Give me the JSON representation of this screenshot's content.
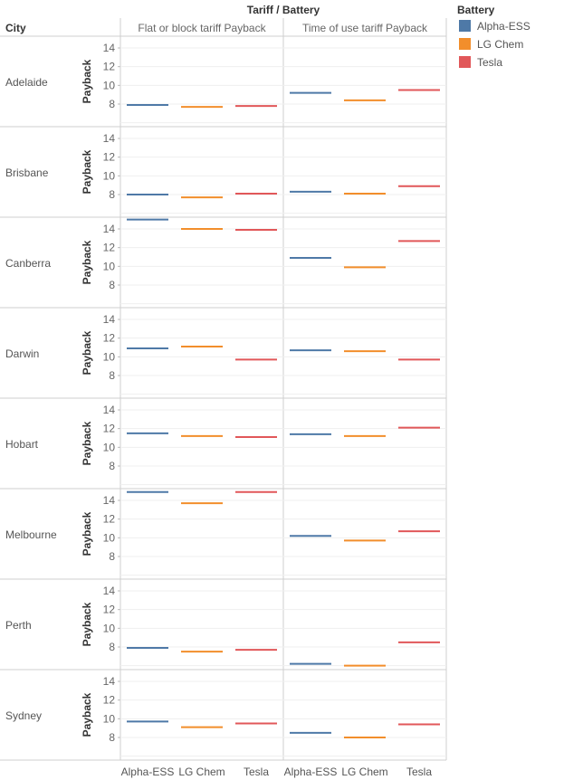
{
  "chart_data": {
    "type": "line",
    "header_title": "Tariff / Battery",
    "row_header": "City",
    "column_groups": [
      "Flat or block tariff Payback",
      "Time of use tariff Payback"
    ],
    "categories": [
      "Alpha-ESS",
      "LG Chem",
      "Tesla"
    ],
    "ylabel": "Payback",
    "yticks": [
      8,
      10,
      12,
      14
    ],
    "ylim": [
      6,
      15.5
    ],
    "legend": {
      "title": "Battery",
      "placement": "top-right",
      "items": [
        {
          "name": "Alpha-ESS",
          "color": "#4e79a7"
        },
        {
          "name": "LG Chem",
          "color": "#f28e2b"
        },
        {
          "name": "Tesla",
          "color": "#e15759"
        }
      ]
    },
    "grid": true,
    "rows": [
      {
        "city": "Adelaide",
        "flat": [
          7.9,
          7.7,
          7.8
        ],
        "tou": [
          9.2,
          8.4,
          9.5
        ]
      },
      {
        "city": "Brisbane",
        "flat": [
          8.0,
          7.7,
          8.1
        ],
        "tou": [
          8.3,
          8.1,
          8.9
        ]
      },
      {
        "city": "Canberra",
        "flat": [
          15.0,
          14.0,
          13.9
        ],
        "tou": [
          10.9,
          9.9,
          12.7
        ]
      },
      {
        "city": "Darwin",
        "flat": [
          10.9,
          11.1,
          9.7
        ],
        "tou": [
          10.7,
          10.6,
          9.7
        ]
      },
      {
        "city": "Hobart",
        "flat": [
          11.5,
          11.2,
          11.1
        ],
        "tou": [
          11.4,
          11.2,
          12.1
        ]
      },
      {
        "city": "Melbourne",
        "flat": [
          14.9,
          13.7,
          14.9
        ],
        "tou": [
          10.2,
          9.7,
          10.7
        ]
      },
      {
        "city": "Perth",
        "flat": [
          7.9,
          7.5,
          7.7
        ],
        "tou": [
          6.2,
          6.0,
          8.5
        ]
      },
      {
        "city": "Sydney",
        "flat": [
          9.7,
          9.1,
          9.5
        ],
        "tou": [
          8.5,
          8.0,
          9.4
        ]
      }
    ]
  }
}
